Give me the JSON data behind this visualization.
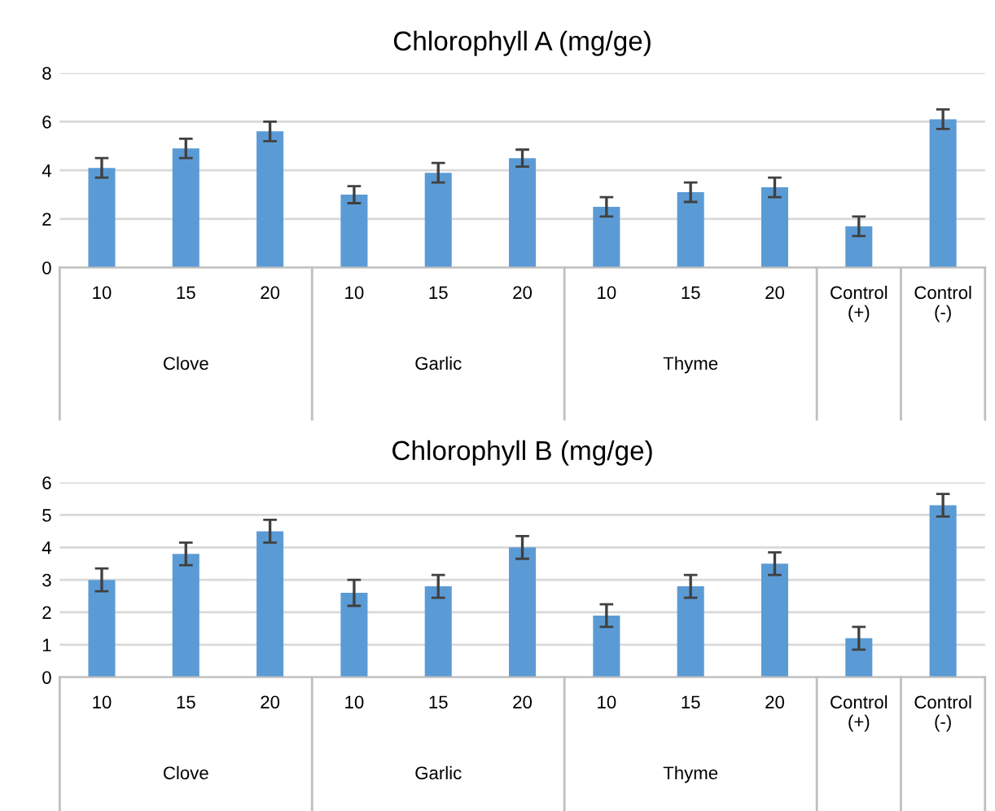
{
  "chart_data": [
    {
      "type": "bar",
      "title": "Chlorophyll A (mg/ge)",
      "categories": [
        "10",
        "15",
        "20",
        "10",
        "15",
        "20",
        "10",
        "15",
        "20",
        "Control (+)",
        "Control (-)"
      ],
      "annotations": [
        "Clove",
        "Garlic",
        "Thyme"
      ],
      "series": [
        {
          "color": "#5b9bd5",
          "values": [
            4.1,
            4.9,
            5.6,
            3.0,
            3.9,
            4.5,
            2.5,
            3.1,
            3.3,
            1.7,
            6.1
          ],
          "errors": [
            0.4,
            0.4,
            0.4,
            0.35,
            0.4,
            0.35,
            0.4,
            0.4,
            0.4,
            0.4,
            0.4
          ]
        }
      ],
      "ylim": [
        0,
        8
      ],
      "yticks": [
        0,
        2,
        4,
        6,
        8
      ],
      "grid": "y"
    },
    {
      "type": "bar",
      "title": "Chlorophyll B (mg/ge)",
      "categories": [
        "10",
        "15",
        "20",
        "10",
        "15",
        "20",
        "10",
        "15",
        "20",
        "Control (+)",
        "Control (-)"
      ],
      "annotations": [
        "Clove",
        "Garlic",
        "Thyme"
      ],
      "series": [
        {
          "color": "#5b9bd5",
          "values": [
            3.0,
            3.8,
            4.5,
            2.6,
            2.8,
            4.0,
            1.9,
            2.8,
            3.5,
            1.2,
            5.3
          ],
          "errors": [
            0.35,
            0.35,
            0.35,
            0.4,
            0.35,
            0.35,
            0.35,
            0.35,
            0.35,
            0.35,
            0.35
          ]
        }
      ],
      "ylim": [
        0,
        6
      ],
      "yticks": [
        0,
        1,
        2,
        3,
        4,
        5,
        6
      ],
      "grid": "y"
    }
  ]
}
